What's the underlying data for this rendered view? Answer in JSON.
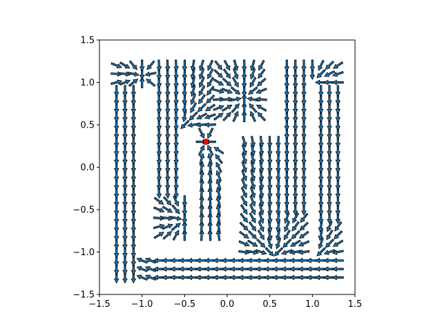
{
  "chart_data": {
    "type": "quiver",
    "title": "",
    "xlabel": "",
    "ylabel": "",
    "xlim": [
      -1.5,
      1.5
    ],
    "ylim": [
      -1.5,
      1.5
    ],
    "xticks": [
      -1.5,
      -1.0,
      -0.5,
      0.0,
      0.5,
      1.0,
      1.5
    ],
    "yticks": [
      -1.5,
      -1.0,
      -0.5,
      0.0,
      0.5,
      1.0,
      1.5
    ],
    "xtick_labels": [
      "−1.5",
      "−1.0",
      "−0.5",
      "0.0",
      "0.5",
      "1.0",
      "1.5"
    ],
    "ytick_labels": [
      "−1.5",
      "−1.0",
      "−0.5",
      "0.0",
      "0.5",
      "1.0",
      "1.5"
    ],
    "grid": false,
    "aspect": "equal",
    "arrow_color": "#1f77b4",
    "arrow_edge_color": "#000000",
    "target_marker": {
      "x": -0.25,
      "y": 0.3,
      "color": "#ff0000"
    },
    "grid_spacing": 0.1,
    "field_regions": [
      {
        "name": "left-outer-corridor",
        "x": [
          -1.3,
          -1.1
        ],
        "y": [
          -1.3,
          1.2
        ],
        "flow": "downward"
      },
      {
        "name": "top-left-corridor",
        "x": [
          -1.3,
          -0.9
        ],
        "y": [
          1.0,
          1.2
        ],
        "flow": "toward (-1.0, 1.1)"
      },
      {
        "name": "inner-left-column",
        "x": [
          -0.8,
          -0.6
        ],
        "y": [
          -0.8,
          1.2
        ],
        "flow": "downward, converging at (-0.5, -0.6)"
      },
      {
        "name": "top-middle-band",
        "x": [
          -0.5,
          0.4
        ],
        "y": [
          0.5,
          1.2
        ],
        "flow": "toward (-0.5, 0.5) and (0.2, 0.9)"
      },
      {
        "name": "target-column",
        "x": [
          -0.3,
          -0.1
        ],
        "y": [
          -0.8,
          0.3
        ],
        "flow": "upward to target"
      },
      {
        "name": "center-right-block",
        "x": [
          0.2,
          0.8
        ],
        "y": [
          -1.0,
          0.3
        ],
        "flow": "toward (0.5, -1.0)"
      },
      {
        "name": "right-inner-column",
        "x": [
          0.7,
          0.9
        ],
        "y": [
          -1.0,
          1.2
        ],
        "flow": "downward"
      },
      {
        "name": "top-right-corridor",
        "x": [
          1.0,
          1.3
        ],
        "y": [
          1.0,
          1.2
        ],
        "flow": "toward (1.0, 1.0)"
      },
      {
        "name": "right-outer-column",
        "x": [
          1.1,
          1.3
        ],
        "y": [
          -1.0,
          1.0
        ],
        "flow": "downward"
      },
      {
        "name": "bottom-corridor",
        "x": [
          -1.0,
          1.3
        ],
        "y": [
          -1.3,
          -1.1
        ],
        "flow": "leftward"
      }
    ]
  }
}
